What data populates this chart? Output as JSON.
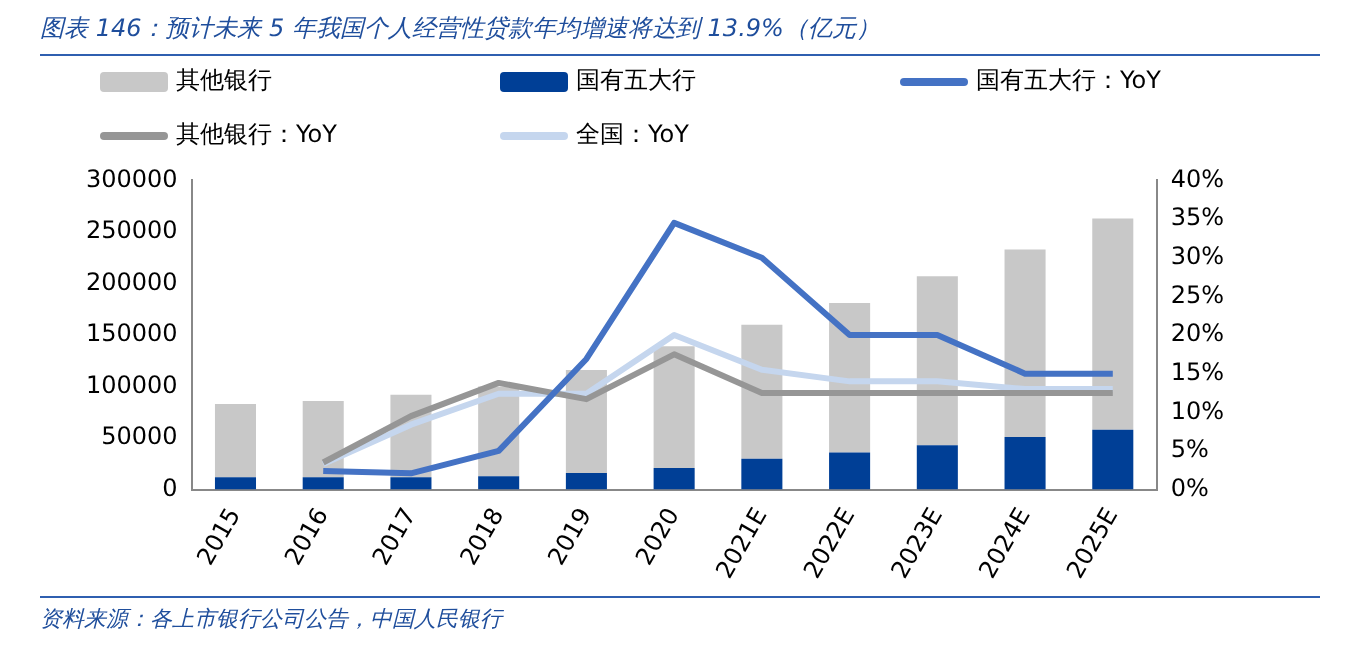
{
  "chart_data": {
    "type": "bar",
    "title": "图表 146：预计未来 5 年我国个人经营性贷款年均增速将达到 13.9%（亿元）",
    "categories": [
      "2015",
      "2016",
      "2017",
      "2018",
      "2019",
      "2020",
      "2021E",
      "2022E",
      "2023E",
      "2024E",
      "2025E"
    ],
    "stacked": true,
    "series": [
      {
        "name": "国有五大行",
        "color": "#003f96",
        "values": [
          12000,
          12000,
          12000,
          13000,
          16000,
          21000,
          30000,
          36000,
          43000,
          51000,
          58000
        ]
      },
      {
        "name": "其他银行",
        "color": "#c8c8c8",
        "values": [
          71000,
          74000,
          80000,
          87000,
          100000,
          118000,
          130000,
          145000,
          164000,
          182000,
          205000
        ]
      },
      {
        "name": "国有五大行：YoY",
        "color": "#4472c4",
        "type": "line",
        "axis": "y2",
        "values": [
          null,
          2.4,
          2.1,
          5,
          16.9,
          34.5,
          30,
          20,
          20,
          15,
          15
        ]
      },
      {
        "name": "其他银行：YoY",
        "color": "#969696",
        "type": "line",
        "axis": "y2",
        "values": [
          null,
          3.5,
          9.5,
          13.8,
          11.7,
          17.5,
          12.5,
          12.5,
          12.5,
          12.5,
          12.5
        ]
      },
      {
        "name": "全国：YoY",
        "color": "#c5d6ee",
        "type": "line",
        "axis": "y2",
        "values": [
          null,
          3.3,
          8.4,
          12.4,
          12.4,
          20,
          15.5,
          14,
          14,
          13,
          13
        ]
      }
    ],
    "ylim": [
      0,
      300000
    ],
    "yticks": [
      0,
      50000,
      100000,
      150000,
      200000,
      250000,
      300000
    ],
    "y2lim": [
      0,
      40
    ],
    "y2ticks": [
      {
        "value": 0,
        "label": "0%"
      },
      {
        "value": 5,
        "label": "5%"
      },
      {
        "value": 10,
        "label": "10%"
      },
      {
        "value": 15,
        "label": "15%"
      },
      {
        "value": 20,
        "label": "20%"
      },
      {
        "value": 25,
        "label": "25%"
      },
      {
        "value": 30,
        "label": "30%"
      },
      {
        "value": 35,
        "label": "35%"
      },
      {
        "value": 40,
        "label": "40%"
      }
    ],
    "grid": false,
    "legend": "top",
    "marker": "none",
    "line_style": "solid",
    "annotations": [
      "资料来源：各上市银行公司公告，中国人民银行"
    ]
  }
}
